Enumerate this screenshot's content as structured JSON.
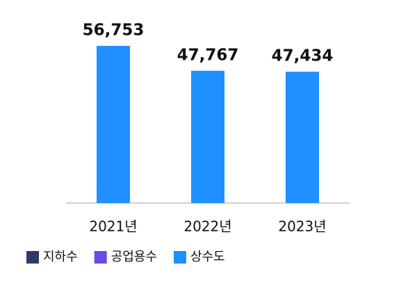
{
  "chart_data": {
    "type": "bar",
    "categories": [
      "2021년",
      "2022년",
      "2023년"
    ],
    "series": [
      {
        "name": "지하수",
        "color": "#2d3a6b",
        "values": [
          null,
          null,
          null
        ]
      },
      {
        "name": "공업용수",
        "color": "#6a4be8",
        "values": [
          null,
          null,
          null
        ]
      },
      {
        "name": "상수도",
        "color": "#1e90ff",
        "values": [
          56753,
          47767,
          47434
        ],
        "value_labels": [
          "56,753",
          "47,767",
          "47,434"
        ]
      }
    ],
    "legend": "bottom-left"
  }
}
